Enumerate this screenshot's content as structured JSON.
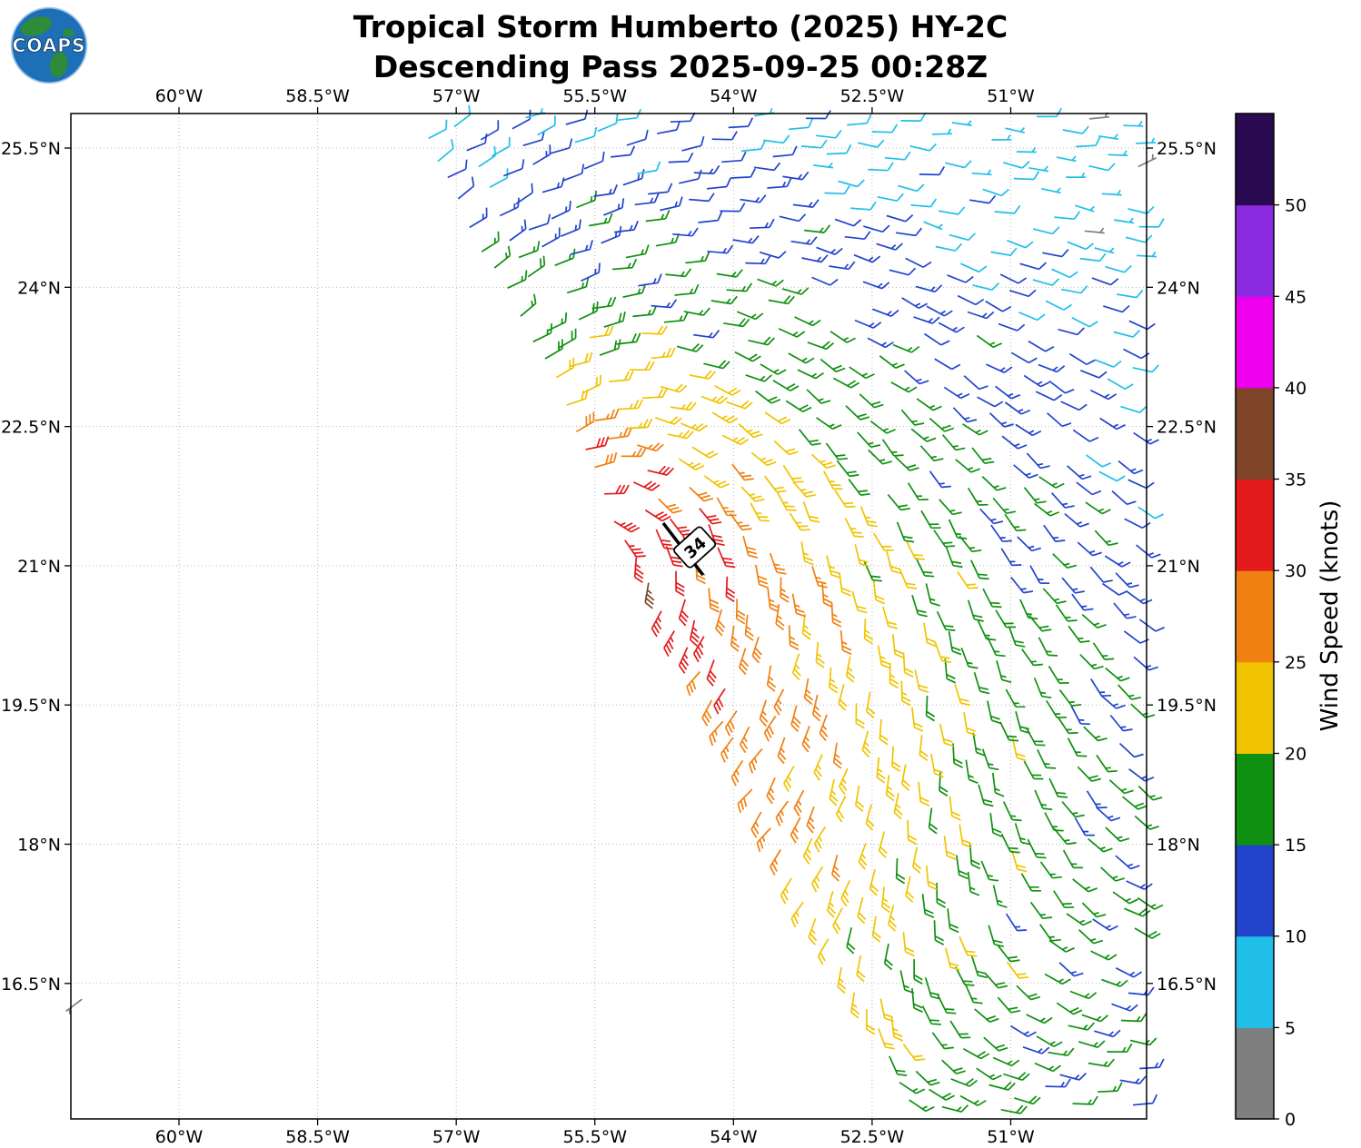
{
  "header": {
    "title_line1": "Tropical Storm Humberto (2025) HY-2C",
    "title_line2": "Descending Pass 2025-09-25 00:28Z",
    "logo_text": "COAPS"
  },
  "chart_data": {
    "type": "wind_barb_map",
    "title": "Tropical Storm Humberto (2025) HY-2C",
    "subtitle": "Descending Pass 2025-09-25 00:28Z",
    "grid_color": "#b5b5b5",
    "x_axis": {
      "tick_values": [
        -60,
        -58.5,
        -57,
        -55.5,
        -54,
        -52.5,
        -51
      ],
      "tick_labels": [
        "60°W",
        "58.5°W",
        "57°W",
        "55.5°W",
        "54°W",
        "52.5°W",
        "51°W"
      ],
      "range": [
        -61.17,
        -49.53
      ]
    },
    "y_axis": {
      "tick_values": [
        25.5,
        24,
        22.5,
        21,
        19.5,
        18,
        16.5
      ],
      "tick_labels": [
        "25.5°N",
        "24°N",
        "22.5°N",
        "21°N",
        "19.5°N",
        "18°N",
        "16.5°N"
      ],
      "range": [
        15.04,
        25.872
      ]
    },
    "colorbar": {
      "label": "Wind Speed (knots)",
      "tick_values": [
        0,
        5,
        10,
        15,
        20,
        25,
        30,
        35,
        40,
        45,
        50
      ],
      "value_max": 55,
      "segment_colors": [
        "#7f7f7f",
        "#1fbfea",
        "#2244cc",
        "#109010",
        "#f0c400",
        "#f08010",
        "#e31a1c",
        "#7d4427",
        "#ee00ee",
        "#8a2be2",
        "#2a0a50"
      ]
    },
    "swath": {
      "origin": {
        "lon": -52.0,
        "lat": 15.0
      },
      "along": {
        "dlon": -0.4452,
        "dlat": 0.8954
      },
      "across": {
        "dlon": 0.8954,
        "dlat": 0.4452
      },
      "step": 0.27,
      "i_min": -6,
      "i_max": 45,
      "j_max": 36
    },
    "storm": {
      "center_lon": -55.55,
      "center_lat": 21.2,
      "speed_profile": [
        [
          0,
          37
        ],
        [
          0.5,
          34
        ],
        [
          1,
          31
        ],
        [
          1.5,
          28
        ],
        [
          2,
          25.5
        ],
        [
          2.5,
          23
        ],
        [
          3,
          20.5
        ],
        [
          3.5,
          18.5
        ],
        [
          4,
          17
        ],
        [
          5,
          14.5
        ],
        [
          6,
          12
        ],
        [
          7,
          9.5
        ],
        [
          8,
          7.5
        ],
        [
          9,
          6.2
        ],
        [
          12,
          5.5
        ]
      ],
      "asym_base": 0.975,
      "asym_amp": 0.525,
      "inflow": 0.28,
      "background_wind": {
        "u": -1,
        "v": -0.35
      },
      "blend_start": 2.5,
      "blend_span": 8,
      "blend_max": 0.7
    },
    "annotation": {
      "text": "34",
      "lon": -54.42,
      "lat": 21.2,
      "rotation_deg": -42,
      "track_line": {
        "lon1": -54.76,
        "lat1": 21.46,
        "lon2": -54.33,
        "lat2": 20.9
      }
    },
    "outlier_barbs": [
      {
        "lon": -61.05,
        "lat": 16.33,
        "speed": 3,
        "from_u": -0.8,
        "from_v": -0.6
      },
      {
        "lon": -49.62,
        "lat": 25.3,
        "speed": 3,
        "from_u": 0.9,
        "from_v": 0.44
      }
    ]
  }
}
